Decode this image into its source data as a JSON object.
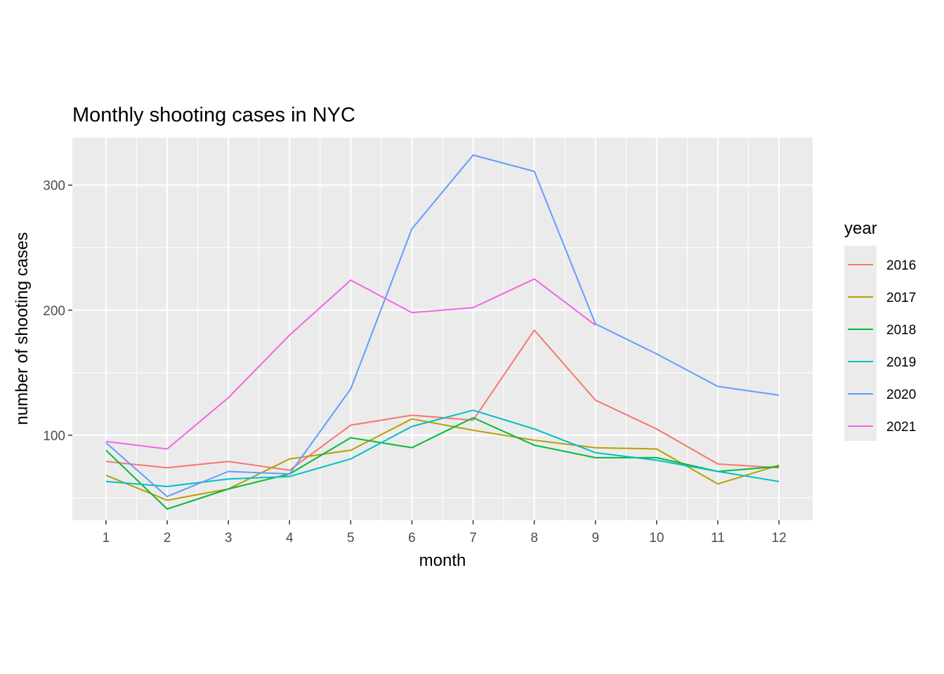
{
  "chart_data": {
    "type": "line",
    "title": "Monthly shooting cases in NYC",
    "xlabel": "month",
    "ylabel": "number of shooting cases",
    "x": [
      1,
      2,
      3,
      4,
      5,
      6,
      7,
      8,
      9,
      10,
      11,
      12
    ],
    "xlim": [
      0.45,
      12.55
    ],
    "ylim": [
      32,
      338
    ],
    "yticks": [
      100,
      200,
      300
    ],
    "grid": true,
    "legend": {
      "title": "year",
      "position": "right"
    },
    "panel_background": "#ebebeb",
    "series": [
      {
        "name": "2016",
        "color": "#F8766D",
        "values": [
          79,
          74,
          79,
          72,
          108,
          116,
          112,
          184,
          128,
          105,
          77,
          74
        ]
      },
      {
        "name": "2017",
        "color": "#B79F00",
        "values": [
          68,
          48,
          57,
          81,
          88,
          113,
          104,
          96,
          90,
          89,
          61,
          76
        ]
      },
      {
        "name": "2018",
        "color": "#00BA38",
        "values": [
          88,
          41,
          57,
          69,
          98,
          90,
          114,
          92,
          82,
          82,
          71,
          75
        ]
      },
      {
        "name": "2019",
        "color": "#00BFC4",
        "values": [
          63,
          59,
          65,
          67,
          81,
          107,
          120,
          105,
          86,
          80,
          71,
          63
        ]
      },
      {
        "name": "2020",
        "color": "#619CFF",
        "values": [
          94,
          51,
          71,
          69,
          137,
          265,
          324,
          311,
          189,
          165,
          139,
          132
        ]
      },
      {
        "name": "2021",
        "color": "#F564E3",
        "values": [
          95,
          89,
          130,
          180,
          224,
          198,
          202,
          225,
          188,
          null,
          null,
          null
        ]
      }
    ]
  }
}
